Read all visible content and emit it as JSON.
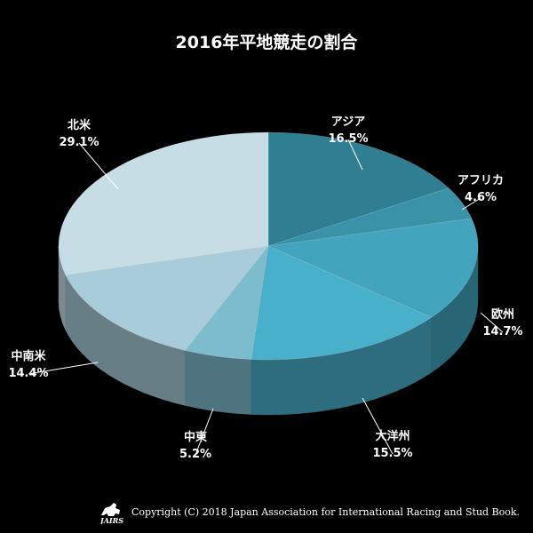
{
  "chart_data": {
    "type": "pie",
    "title": "2016年平地競走の割合",
    "slices": [
      {
        "label": "アジア",
        "value": 16.5,
        "display": "16.5%",
        "color": "#2f7e92"
      },
      {
        "label": "アフリカ",
        "value": 4.6,
        "display": "4.6%",
        "color": "#3a92a8"
      },
      {
        "label": "欧州",
        "value": 14.7,
        "display": "14.7%",
        "color": "#42a4bd"
      },
      {
        "label": "大洋州",
        "value": 15.5,
        "display": "15.5%",
        "color": "#49b0cc"
      },
      {
        "label": "中東",
        "value": 5.2,
        "display": "5.2%",
        "color": "#7dbccd"
      },
      {
        "label": "中南米",
        "value": 14.4,
        "display": "14.4%",
        "color": "#a8ccd9"
      },
      {
        "label": "北米",
        "value": 29.1,
        "display": "29.1%",
        "color": "#c6dde5"
      }
    ],
    "style": "3d-tilted"
  },
  "footer": {
    "logo_text": "JAIRS",
    "copyright": "Copyright (C) 2018 Japan Association for International Racing and Stud Book."
  }
}
